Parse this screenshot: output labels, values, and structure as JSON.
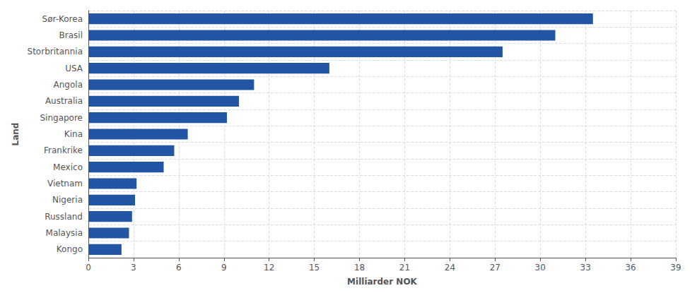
{
  "chart_data": {
    "type": "bar",
    "orientation": "horizontal",
    "categories": [
      "Sør-Korea",
      "Brasil",
      "Storbritannia",
      "USA",
      "Angola",
      "Australia",
      "Singapore",
      "Kina",
      "Frankrike",
      "Mexico",
      "Vietnam",
      "Nigeria",
      "Russland",
      "Malaysia",
      "Kongo"
    ],
    "values": [
      33.5,
      31.0,
      27.5,
      16.0,
      11.0,
      10.0,
      9.2,
      6.6,
      5.7,
      5.0,
      3.2,
      3.1,
      2.9,
      2.7,
      2.2
    ],
    "color": "#2255A4",
    "xlabel": "Milliarder NOK",
    "ylabel": "Land",
    "xlim": [
      0,
      39
    ],
    "xticks": [
      0,
      3,
      6,
      9,
      12,
      15,
      18,
      21,
      24,
      27,
      30,
      33,
      36,
      39
    ],
    "grid": true
  }
}
